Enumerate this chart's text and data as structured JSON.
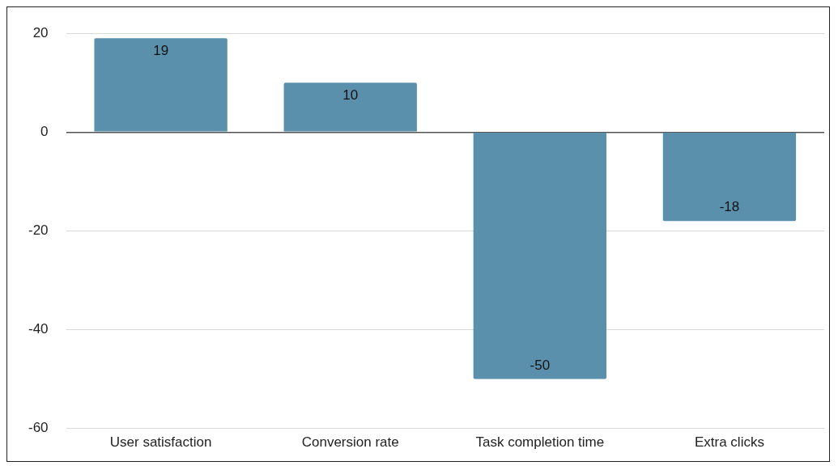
{
  "chart_data": {
    "type": "bar",
    "categories": [
      "User satisfaction",
      "Conversion rate",
      "Task completion time",
      "Extra clicks"
    ],
    "values": [
      19,
      10,
      -50,
      -18
    ],
    "color": "#5b90ad",
    "ylim": [
      -60,
      20
    ],
    "yticks": [
      -60,
      -40,
      -20,
      0,
      20
    ],
    "grid": "y",
    "data_labels": true,
    "legend": false
  }
}
